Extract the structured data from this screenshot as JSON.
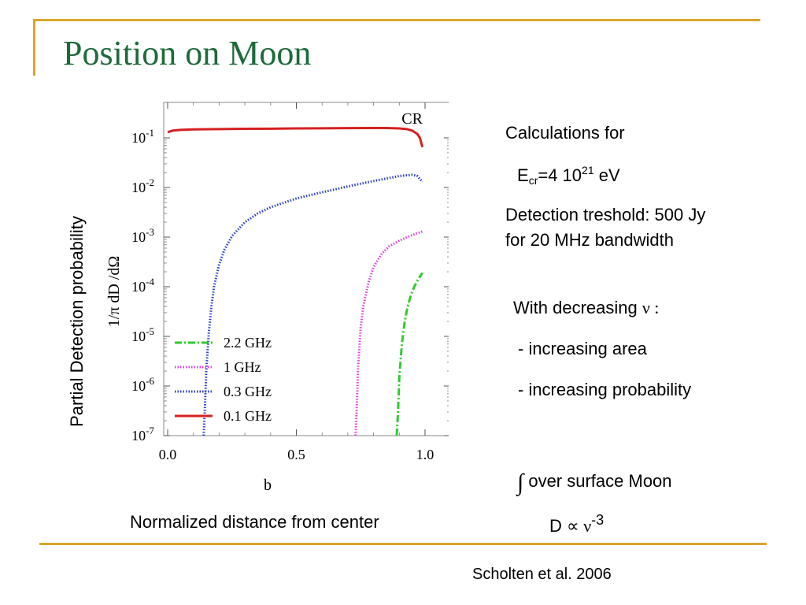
{
  "slide": {
    "title": "Position on Moon",
    "y_axis_caption": "Partial Detection probability",
    "x_axis_caption": "Normalized distance from center",
    "citation": "Scholten et al. 2006"
  },
  "notes": {
    "calc_for": "Calculations for",
    "ecr_base": "E",
    "ecr_sub": "cr",
    "ecr_eq": "=4 10",
    "ecr_exp": "21",
    "ecr_unit": " eV",
    "threshold_line1": "Detection treshold: 500 Jy",
    "threshold_line2": "for 20 MHz bandwidth",
    "decreasing_prefix": "With decreasing ",
    "decreasing_symbol": "ν :",
    "bullet1": "- increasing area",
    "bullet2": "- increasing probability",
    "integral_symbol": "∫",
    "integral_text": " over surface Moon",
    "prop_left": "D ",
    "prop_symbol": "∝ ν",
    "prop_exp": "-3"
  },
  "chart_data": {
    "type": "line",
    "title": "",
    "xlabel": "b",
    "ylabel": "1/π   dD /dΩ",
    "xlim": [
      0.0,
      1.08
    ],
    "ylim": [
      1e-07,
      0.5
    ],
    "yscale": "log",
    "xticks": [
      "0.0",
      "0.5",
      "1.0"
    ],
    "yticks": [
      {
        "base": "10",
        "exp": "-1"
      },
      {
        "base": "10",
        "exp": "-2"
      },
      {
        "base": "10",
        "exp": "-3"
      },
      {
        "base": "10",
        "exp": "-4"
      },
      {
        "base": "10",
        "exp": "-5"
      },
      {
        "base": "10",
        "exp": "-6"
      },
      {
        "base": "10",
        "exp": "-7"
      }
    ],
    "annotation": "CR",
    "legend_position": "bottom-left",
    "series": [
      {
        "name": "2.2 GHz",
        "color": "#2ecc2e",
        "style": "dashdot",
        "x": [
          0.89,
          0.895,
          0.9,
          0.91,
          0.92,
          0.93,
          0.94,
          0.95,
          0.96,
          0.97,
          0.98,
          0.99
        ],
        "y": [
          1e-07,
          3e-07,
          1.5e-06,
          7e-06,
          1.8e-05,
          3.5e-05,
          5.5e-05,
          8e-05,
          0.000105,
          0.00013,
          0.00016,
          0.00019
        ]
      },
      {
        "name": "1 GHz",
        "color": "#e040e0",
        "style": "dotted",
        "x": [
          0.73,
          0.735,
          0.74,
          0.75,
          0.76,
          0.78,
          0.8,
          0.83,
          0.86,
          0.9,
          0.94,
          0.97,
          0.99
        ],
        "y": [
          1e-07,
          4e-07,
          2.5e-06,
          1.5e-05,
          4e-05,
          0.00012,
          0.00025,
          0.00045,
          0.00065,
          0.00085,
          0.00105,
          0.0012,
          0.0013
        ]
      },
      {
        "name": "0.3 GHz",
        "color": "#2a3ec8",
        "style": "dotted",
        "x": [
          0.14,
          0.145,
          0.15,
          0.16,
          0.17,
          0.18,
          0.2,
          0.22,
          0.25,
          0.3,
          0.35,
          0.4,
          0.5,
          0.6,
          0.7,
          0.8,
          0.9,
          0.95,
          0.97,
          0.99
        ],
        "y": [
          1e-07,
          4e-07,
          2e-06,
          1.2e-05,
          4e-05,
          0.0001,
          0.00028,
          0.00055,
          0.00105,
          0.002,
          0.003,
          0.004,
          0.006,
          0.008,
          0.0105,
          0.0135,
          0.017,
          0.018,
          0.017,
          0.013
        ]
      },
      {
        "name": "0.1 GHz",
        "color": "#d62020",
        "style": "solid",
        "x": [
          0.0,
          0.02,
          0.05,
          0.1,
          0.2,
          0.3,
          0.4,
          0.5,
          0.6,
          0.7,
          0.8,
          0.85,
          0.9,
          0.93,
          0.95,
          0.97,
          0.98,
          0.99
        ],
        "y": [
          0.13,
          0.14,
          0.145,
          0.148,
          0.15,
          0.152,
          0.153,
          0.155,
          0.156,
          0.157,
          0.158,
          0.158,
          0.155,
          0.15,
          0.14,
          0.12,
          0.1,
          0.065
        ]
      }
    ]
  }
}
